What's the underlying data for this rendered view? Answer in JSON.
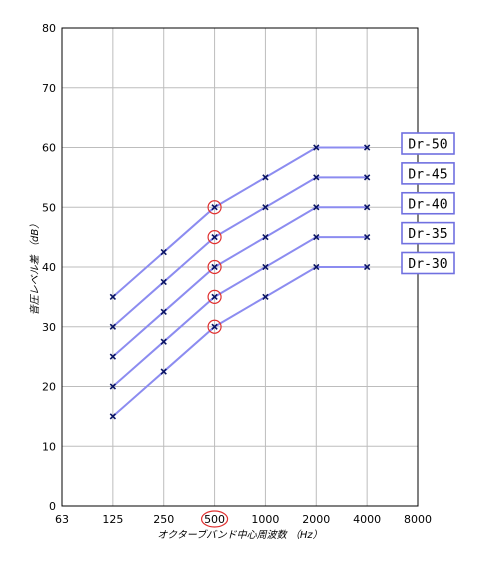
{
  "chart_data": {
    "type": "line",
    "xlabel": "オクターブバンド中心周波数 （Hz）",
    "ylabel": "音圧レベル差 （dB）",
    "x_ticks": [
      "63",
      "125",
      "250",
      "500",
      "1000",
      "2000",
      "4000",
      "8000"
    ],
    "y_ticks": [
      "0",
      "10",
      "20",
      "30",
      "40",
      "50",
      "60",
      "70",
      "80"
    ],
    "ylim": [
      0,
      80
    ],
    "xscale": "log2",
    "grid": true,
    "highlight_category": "500",
    "categories": [
      "125",
      "250",
      "500",
      "1000",
      "2000",
      "4000"
    ],
    "series": [
      {
        "name": "Dr-50",
        "values": [
          35,
          42.5,
          50,
          55,
          60,
          60
        ]
      },
      {
        "name": "Dr-45",
        "values": [
          30,
          37.5,
          45,
          50,
          55,
          55
        ]
      },
      {
        "name": "Dr-40",
        "values": [
          25,
          32.5,
          40,
          45,
          50,
          50
        ]
      },
      {
        "name": "Dr-35",
        "values": [
          20,
          27.5,
          35,
          40,
          45,
          45
        ]
      },
      {
        "name": "Dr-30",
        "values": [
          15,
          22.5,
          30,
          35,
          40,
          40
        ]
      }
    ],
    "colors": {
      "line": "#8c8cf0",
      "marker": "#0a1464",
      "highlight_circle": "#e03030",
      "label_border": "#7070e0",
      "grid": "#bdbdbd",
      "frame": "#000000"
    }
  }
}
